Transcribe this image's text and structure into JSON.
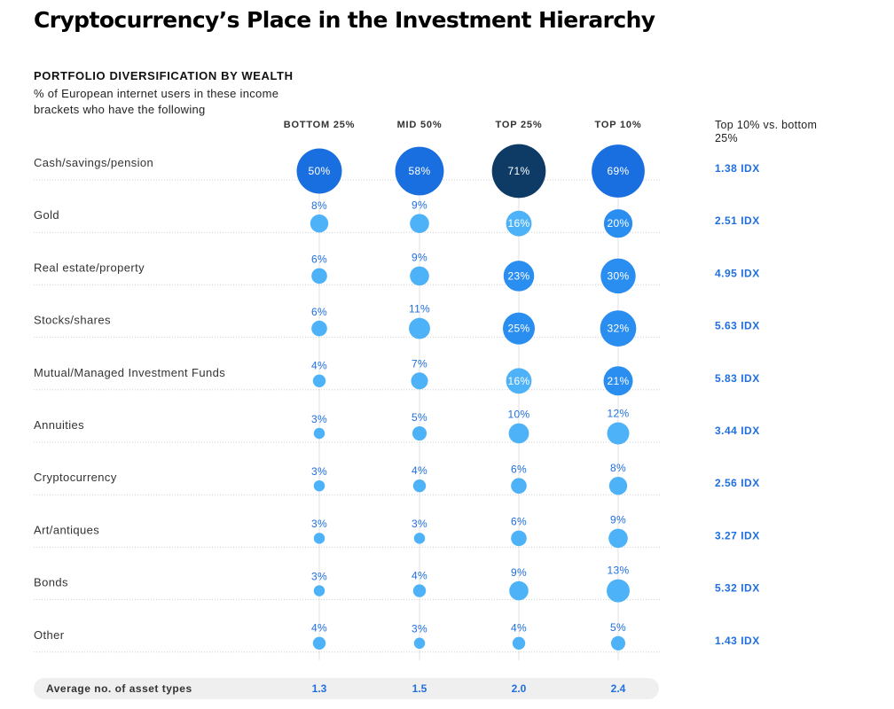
{
  "title": "Cryptocurrency’s Place in the Investment Hierarchy",
  "subtitle": "PORTFOLIO DIVERSIFICATION BY WEALTH",
  "description": "% of European internet users in these income brackets who have the following",
  "idx_header": "Top 10% vs. bottom 25%",
  "average": {
    "label": "Average no. of asset types",
    "values": [
      "1.3",
      "1.5",
      "2.0",
      "2.4"
    ]
  },
  "colors": {
    "accent": "#1f6fe0",
    "bubble_light": "#4db2f7",
    "bubble_mid": "#2a8ef0",
    "bubble_blue": "#1a6fe0",
    "bubble_dark": "#0d3b66"
  },
  "chart_data": {
    "type": "bubble-table",
    "title": "Cryptocurrency’s Place in the Investment Hierarchy",
    "columns": [
      "BOTTOM 25%",
      "MID 50%",
      "TOP 25%",
      "TOP 10%"
    ],
    "rows": [
      {
        "category": "Cash/savings/pension",
        "values": [
          50,
          58,
          71,
          69
        ],
        "idx": "1.38 IDX"
      },
      {
        "category": "Gold",
        "values": [
          8,
          9,
          16,
          20
        ],
        "idx": "2.51 IDX"
      },
      {
        "category": "Real estate/property",
        "values": [
          6,
          9,
          23,
          30
        ],
        "idx": "4.95 IDX"
      },
      {
        "category": "Stocks/shares",
        "values": [
          6,
          11,
          25,
          32
        ],
        "idx": "5.63 IDX"
      },
      {
        "category": "Mutual/Managed Investment Funds",
        "values": [
          4,
          7,
          16,
          21
        ],
        "idx": "5.83 IDX"
      },
      {
        "category": "Annuities",
        "values": [
          3,
          5,
          10,
          12
        ],
        "idx": "3.44 IDX"
      },
      {
        "category": "Cryptocurrency",
        "values": [
          3,
          4,
          6,
          8
        ],
        "idx": "2.56 IDX"
      },
      {
        "category": "Art/antiques",
        "values": [
          3,
          3,
          6,
          9
        ],
        "idx": "3.27 IDX"
      },
      {
        "category": "Bonds",
        "values": [
          3,
          4,
          9,
          13
        ],
        "idx": "5.32 IDX"
      },
      {
        "category": "Other",
        "values": [
          4,
          3,
          4,
          5
        ],
        "idx": "1.43 IDX"
      }
    ],
    "value_suffix": "%"
  }
}
